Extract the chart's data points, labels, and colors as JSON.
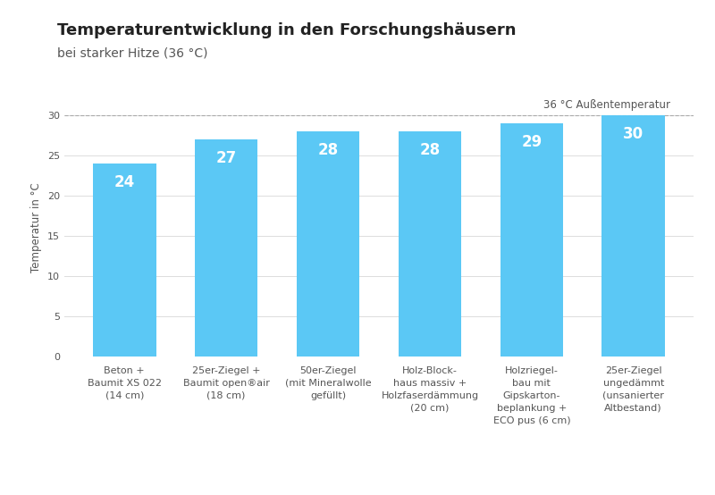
{
  "title_line1": "Temperaturentwicklung in den Forschungshäusern",
  "title_line2": "bei starker Hitze (36 °C)",
  "ylabel": "Temperatur in °C",
  "ylim": [
    0,
    32
  ],
  "yticks": [
    0,
    5,
    10,
    15,
    20,
    25,
    30
  ],
  "annotation": "36 °C Außentemperatur",
  "bar_color": "#5BC8F5",
  "background_color": "#ffffff",
  "plot_bg_color": "#ffffff",
  "categories": [
    "Beton +\nBaumit XS 022\n(14 cm)",
    "25er-Ziegel +\nBaumit open®air\n(18 cm)",
    "50er-Ziegel\n(mit Mineralwolle\ngefüllt)",
    "Holz-Block-\nhaus massiv +\nHolzfaserdämmung\n(20 cm)",
    "Holzriegel-\nbau mit\nGipskarton-\nbeplankung +\nECO pus (6 cm)",
    "25er-Ziegel\nungedämmt\n(unsanierter\nAltbestand)"
  ],
  "values": [
    24,
    27,
    28,
    28,
    29,
    30
  ],
  "bar_labels": [
    "24",
    "27",
    "28",
    "28",
    "29",
    "30"
  ],
  "label_color": "#ffffff",
  "label_fontsize": 12,
  "title_fontsize": 13,
  "subtitle_fontsize": 10,
  "annotation_fontsize": 8.5,
  "tick_label_fontsize": 8,
  "ylabel_fontsize": 8.5,
  "grid_color": "#dddddd",
  "reference_line_color": "#aaaaaa",
  "text_color": "#555555",
  "title_color": "#222222"
}
